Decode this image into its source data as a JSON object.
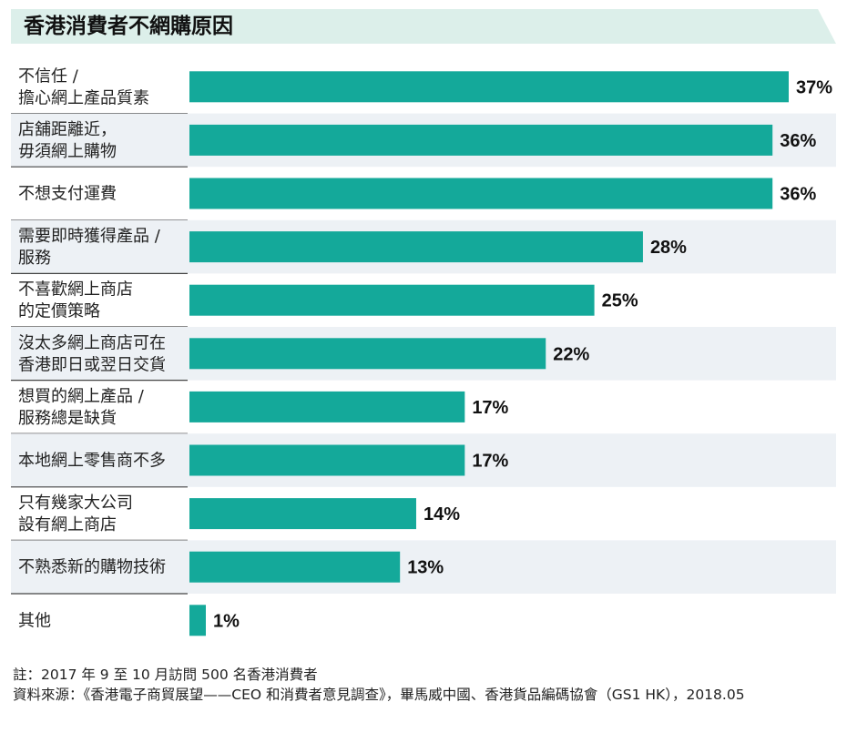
{
  "chart_data": {
    "type": "bar",
    "orientation": "horizontal",
    "title": "香港消費者不網購原因",
    "categories": [
      [
        "不信任 /",
        "擔心網上產品質素"
      ],
      [
        "店舖距離近，",
        "毋須網上購物"
      ],
      [
        "不想支付運費"
      ],
      [
        "需要即時獲得產品 /",
        "服務"
      ],
      [
        "不喜歡網上商店",
        "的定價策略"
      ],
      [
        "沒太多網上商店可在",
        "香港即日或翌日交貨"
      ],
      [
        "想買的網上產品 /",
        "服務總是缺貨"
      ],
      [
        "本地網上零售商不多"
      ],
      [
        "只有幾家大公司",
        "設有網上商店"
      ],
      [
        "不熟悉新的購物技術"
      ],
      [
        "其他"
      ]
    ],
    "values": [
      37,
      36,
      36,
      28,
      25,
      22,
      17,
      17,
      14,
      13,
      1
    ],
    "value_labels": [
      "37%",
      "36%",
      "36%",
      "28%",
      "25%",
      "22%",
      "17%",
      "17%",
      "14%",
      "13%",
      "1%"
    ],
    "xlim": [
      0,
      37
    ],
    "bar_color": "#14a99a",
    "alt_row_color": "#edf1f5",
    "grid": false,
    "legend": "none"
  },
  "notes": {
    "line1": "註：2017 年 9 至 10 月訪問 500 名香港消費者",
    "line2": "資料來源：《香港電子商貿展望——CEO 和消費者意見調查》，畢馬威中國、香港貨品編碼協會（GS1 HK），2018.05"
  }
}
